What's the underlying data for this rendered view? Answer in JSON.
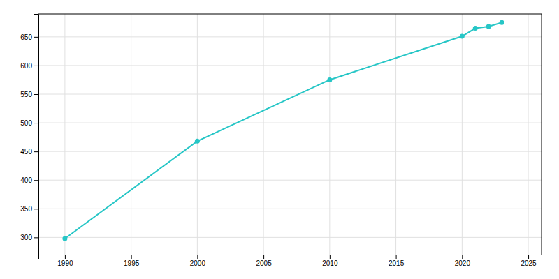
{
  "chart_data": {
    "type": "line",
    "x": [
      1990,
      2000,
      2010,
      2020,
      2021,
      2022,
      2023
    ],
    "values": [
      298,
      468,
      575,
      651,
      665,
      668,
      675
    ],
    "color": "#26c6c6",
    "marker": "circle",
    "xlim": [
      1988,
      2026
    ],
    "ylim": [
      270,
      690
    ],
    "xticks": [
      1990,
      1995,
      2000,
      2005,
      2010,
      2015,
      2020,
      2025
    ],
    "yticks": [
      300,
      350,
      400,
      450,
      500,
      550,
      600,
      650
    ],
    "grid": true
  }
}
